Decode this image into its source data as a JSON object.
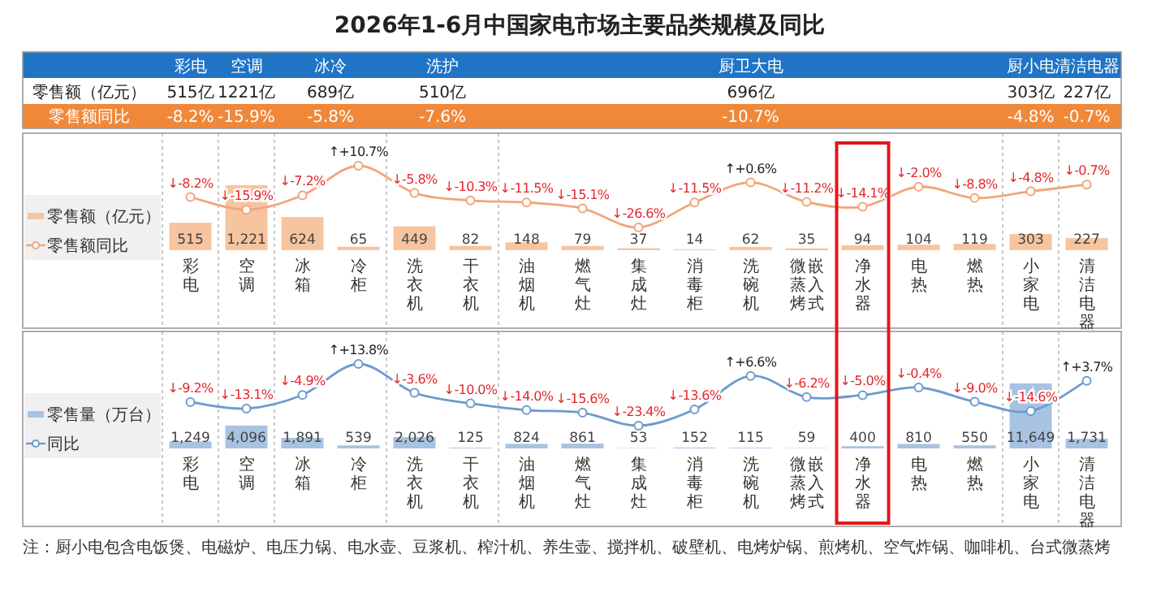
{
  "chart_data": [
    {
      "type": "other",
      "title": "2026年1-6月中国家电市场主要品类规模及同比",
      "categories": [
        "彩电",
        "空调",
        "冰冷",
        "洗护",
        "厨卫大电",
        "厨小电",
        "清洁电器"
      ],
      "y_categories": [
        "零售额（亿元）",
        "零售额同比"
      ],
      "cell_labels": [
        [
          "515亿",
          "1221亿",
          "689亿",
          "510亿",
          "696亿",
          "303亿",
          "227亿"
        ],
        [
          "-8.2%",
          "-15.9%",
          "-5.8%",
          "-7.6%",
          "-10.7%",
          "-4.8%",
          "-0.7%"
        ]
      ]
    },
    {
      "type": "bar",
      "categories": [
        "彩电",
        "空调",
        "冰箱",
        "冷柜",
        "洗衣机",
        "干衣机",
        "油烟机",
        "燃气灶",
        "集成灶",
        "消毒柜",
        "洗碗机",
        "嵌入式微蒸烤",
        "净水器",
        "电热",
        "燃热",
        "小家电",
        "清洁电器"
      ],
      "marker": "circle",
      "legend": "left",
      "series": [
        {
          "name": "零售额（亿元）",
          "type": "bar",
          "color": "#f7c4a0",
          "values": [
            515,
            1221,
            624,
            65,
            449,
            82,
            148,
            79,
            37,
            14,
            62,
            35,
            94,
            104,
            119,
            303,
            227
          ],
          "value_labels": [
            "515",
            "1,221",
            "624",
            "65",
            "449",
            "82",
            "148",
            "79",
            "37",
            "14",
            "62",
            "35",
            "94",
            "104",
            "119",
            "303",
            "227"
          ]
        },
        {
          "name": "零售额同比",
          "type": "line",
          "axis": "y2",
          "color": "#f0a679",
          "values": [
            -8.2,
            -15.9,
            -7.2,
            10.7,
            -5.8,
            -10.3,
            -11.5,
            -15.1,
            -26.6,
            -11.5,
            0.6,
            -11.2,
            -14.1,
            -2.0,
            -8.8,
            -4.8,
            -0.7
          ],
          "value_labels": [
            "↓-8.2%",
            "↓-15.9%",
            "↓-7.2%",
            "↑+10.7%",
            "↓-5.8%",
            "↓-10.3%",
            "↓-11.5%",
            "↓-15.1%",
            "↓-26.6%",
            "↓-11.5%",
            "↑+0.6%",
            "↓-11.2%",
            "↓-14.1%",
            "↓-2.0%",
            "↓-8.8%",
            "↓-4.8%",
            "↓-0.7%"
          ]
        }
      ]
    },
    {
      "type": "bar",
      "categories": [
        "彩电",
        "空调",
        "冰箱",
        "冷柜",
        "洗衣机",
        "干衣机",
        "油烟机",
        "燃气灶",
        "集成灶",
        "消毒柜",
        "洗碗机",
        "嵌入式微蒸烤",
        "净水器",
        "电热",
        "燃热",
        "小家电",
        "清洁电器"
      ],
      "marker": "circle",
      "legend": "left",
      "series": [
        {
          "name": "零售量（万台）",
          "type": "bar",
          "color": "#a8c3e2",
          "values": [
            1249,
            4096,
            1891,
            539,
            2026,
            125,
            824,
            861,
            53,
            152,
            115,
            59,
            400,
            810,
            550,
            11649,
            1731
          ],
          "value_labels": [
            "1,249",
            "4,096",
            "1,891",
            "539",
            "2,026",
            "125",
            "824",
            "861",
            "53",
            "152",
            "115",
            "59",
            "400",
            "810",
            "550",
            "11,649",
            "1,731"
          ]
        },
        {
          "name": "同比",
          "type": "line",
          "axis": "y2",
          "color": "#6d9bcc",
          "values": [
            -9.2,
            -13.1,
            -4.9,
            13.8,
            -3.6,
            -10.0,
            -14.0,
            -15.6,
            -23.4,
            -13.6,
            6.6,
            -6.2,
            -5.0,
            -0.4,
            -9.0,
            -14.6,
            3.7
          ],
          "value_labels": [
            "↓-9.2%",
            "↓-13.1%",
            "↓-4.9%",
            "↑+13.8%",
            "↓-3.6%",
            "↓-10.0%",
            "↓-14.0%",
            "↓-15.6%",
            "↓-23.4%",
            "↓-13.6%",
            "↑+6.6%",
            "↓-6.2%",
            "↓-5.0%",
            "↓-0.4%",
            "↓-9.0%",
            "↓-14.6%",
            "↑+3.7%"
          ]
        }
      ],
      "annotations": [
        "注：厨小电包含电饭煲、电磁炉、电压力锅、电水壶、豆浆机、榨汁机、养生壶、搅拌机、破壁机、电烤炉锅、煎烤机、空气炸锅、咖啡机、台式微蒸烤"
      ]
    }
  ]
}
